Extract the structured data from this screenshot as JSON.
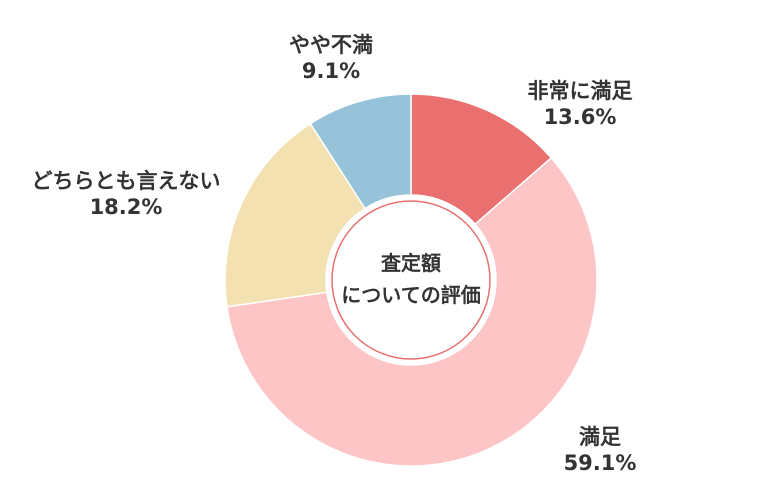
{
  "chart_data": {
    "type": "pie",
    "variant": "donut",
    "center_label": [
      "査定額",
      "についての評価"
    ],
    "slices": [
      {
        "label": "非常に満足",
        "value": 13.6,
        "value_label": "13.6%",
        "color": "#EA7070"
      },
      {
        "label": "満足",
        "value": 59.1,
        "value_label": "59.1%",
        "color": "#FDC5C6"
      },
      {
        "label": "どちらとも言えない",
        "value": 18.2,
        "value_label": "18.2%",
        "color": "#F4E1B2"
      },
      {
        "label": "やや不満",
        "value": 9.1,
        "value_label": "9.1%",
        "color": "#97C3DA"
      }
    ],
    "start": "12 o'clock",
    "direction": "clockwise",
    "legend": "none (labels beside slices)"
  }
}
